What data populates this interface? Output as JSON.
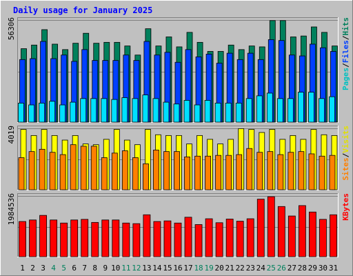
{
  "title": "Daily usage for January 2025",
  "colors": {
    "hits": "#00805c",
    "files": "#0040ff",
    "pages": "#00e0ff",
    "visits": "#ffff00",
    "sites": "#ff8000",
    "kbytes": "#ff0000",
    "title_text": "#0000ff",
    "weekend_label": "#00805c",
    "day_label": "#000000"
  },
  "legends": {
    "top": [
      {
        "text": "Pages",
        "color": "#00c0c0"
      },
      {
        "text": "/",
        "color": "#000000"
      },
      {
        "text": "Files",
        "color": "#0040ff"
      },
      {
        "text": "/",
        "color": "#000000"
      },
      {
        "text": "Hits",
        "color": "#00805c"
      }
    ],
    "middle": [
      {
        "text": "Sites",
        "color": "#ff8000"
      },
      {
        "text": "/",
        "color": "#000000"
      },
      {
        "text": "Visits",
        "color": "#e0e000"
      }
    ],
    "bottom": [
      {
        "text": "KBytes",
        "color": "#ff0000"
      }
    ]
  },
  "chart_data": [
    {
      "type": "bar",
      "panel": "hits-files-pages",
      "x": [
        1,
        2,
        3,
        4,
        5,
        6,
        7,
        8,
        9,
        10,
        11,
        12,
        13,
        14,
        15,
        16,
        17,
        18,
        19,
        20,
        21,
        22,
        23,
        24,
        25,
        26,
        27,
        28,
        29,
        30,
        31
      ],
      "y_max_label": "56306",
      "y_max": 56306,
      "series": [
        {
          "name": "Hits",
          "values": [
            40500,
            42500,
            51000,
            43000,
            40000,
            43500,
            49000,
            43500,
            44000,
            44000,
            42000,
            37000,
            51500,
            42000,
            47000,
            41500,
            49500,
            44000,
            39000,
            39000,
            42500,
            40000,
            42000,
            41500,
            56000,
            56000,
            47000,
            47500,
            52500,
            49500,
            42000
          ]
        },
        {
          "name": "Files",
          "values": [
            34500,
            35000,
            44500,
            35000,
            37000,
            33500,
            40000,
            34000,
            34000,
            34000,
            37000,
            34000,
            44500,
            37000,
            38500,
            33000,
            40000,
            36000,
            37500,
            32500,
            38000,
            34500,
            38000,
            34500,
            45500,
            45000,
            37000,
            36500,
            43000,
            41000,
            39000
          ]
        },
        {
          "name": "Pages",
          "values": [
            10500,
            9500,
            10500,
            11500,
            9500,
            11000,
            13000,
            13000,
            13000,
            12500,
            13500,
            13000,
            15000,
            13000,
            11000,
            10000,
            12000,
            9500,
            12000,
            10500,
            10500,
            10500,
            13000,
            14500,
            16000,
            13000,
            13000,
            16500,
            16500,
            13000,
            14000
          ]
        }
      ]
    },
    {
      "type": "bar",
      "panel": "visits-sites",
      "x": [
        1,
        2,
        3,
        4,
        5,
        6,
        7,
        8,
        9,
        10,
        11,
        12,
        13,
        14,
        15,
        16,
        17,
        18,
        19,
        20,
        21,
        22,
        23,
        24,
        25,
        26,
        27,
        28,
        29,
        30,
        31
      ],
      "y_max_label": "4019",
      "y_max": 4019,
      "series": [
        {
          "name": "Visits",
          "values": [
            3950,
            3550,
            3950,
            3550,
            3250,
            3550,
            3000,
            2950,
            3300,
            3950,
            3250,
            2950,
            3950,
            3600,
            3550,
            3550,
            3000,
            3550,
            3300,
            3000,
            3300,
            4000,
            3950,
            3750,
            3950,
            3300,
            3550,
            3300,
            3950,
            3600,
            3550
          ]
        },
        {
          "name": "Sites",
          "values": [
            2100,
            2500,
            2650,
            2450,
            2300,
            2950,
            2850,
            2850,
            2100,
            2400,
            2550,
            2100,
            1700,
            2600,
            2500,
            2500,
            2150,
            2200,
            2200,
            2250,
            2250,
            2300,
            2700,
            2450,
            2500,
            2300,
            2450,
            2500,
            2350,
            2200,
            2250
          ]
        }
      ]
    },
    {
      "type": "bar",
      "panel": "kbytes",
      "x": [
        1,
        2,
        3,
        4,
        5,
        6,
        7,
        8,
        9,
        10,
        11,
        12,
        13,
        14,
        15,
        16,
        17,
        18,
        19,
        20,
        21,
        22,
        23,
        24,
        25,
        26,
        27,
        28,
        29,
        30,
        31
      ],
      "y_max_label": "1984536",
      "y_max": 1984536,
      "series": [
        {
          "name": "KBytes",
          "values": [
            1150000,
            1200000,
            1350000,
            1200000,
            1100000,
            1200000,
            1220000,
            1120000,
            1200000,
            1200000,
            1100000,
            1080000,
            1370000,
            1150000,
            1170000,
            1100000,
            1290000,
            1050000,
            1240000,
            1110000,
            1230000,
            1160000,
            1240000,
            1880000,
            1960000,
            1640000,
            1330000,
            1670000,
            1460000,
            1220000,
            1370000
          ]
        }
      ]
    }
  ],
  "days": [
    "1",
    "2",
    "3",
    "4",
    "5",
    "6",
    "7",
    "8",
    "9",
    "10",
    "11",
    "12",
    "13",
    "14",
    "15",
    "16",
    "17",
    "18",
    "19",
    "20",
    "21",
    "22",
    "23",
    "24",
    "25",
    "26",
    "27",
    "28",
    "29",
    "30",
    "31"
  ],
  "weekend_days": [
    4,
    5,
    11,
    12,
    18,
    19,
    25,
    26
  ]
}
